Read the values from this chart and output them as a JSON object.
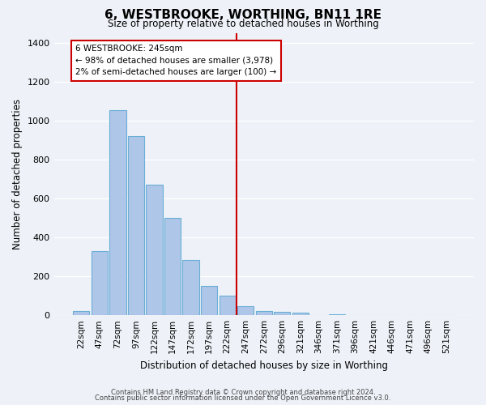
{
  "title": "6, WESTBROOKE, WORTHING, BN11 1RE",
  "subtitle": "Size of property relative to detached houses in Worthing",
  "xlabel": "Distribution of detached houses by size in Worthing",
  "ylabel": "Number of detached properties",
  "bar_labels": [
    "22sqm",
    "47sqm",
    "72sqm",
    "97sqm",
    "122sqm",
    "147sqm",
    "172sqm",
    "197sqm",
    "222sqm",
    "247sqm",
    "272sqm",
    "296sqm",
    "321sqm",
    "346sqm",
    "371sqm",
    "396sqm",
    "421sqm",
    "446sqm",
    "471sqm",
    "496sqm",
    "521sqm"
  ],
  "bar_values": [
    20,
    330,
    1055,
    920,
    670,
    500,
    285,
    150,
    100,
    45,
    22,
    18,
    14,
    0,
    5,
    0,
    0,
    0,
    0,
    0,
    0
  ],
  "bar_color": "#aec6e8",
  "bar_edge_color": "#6aaed6",
  "vline_x": 8.5,
  "vline_color": "#cc0000",
  "ylim": [
    0,
    1450
  ],
  "yticks": [
    0,
    200,
    400,
    600,
    800,
    1000,
    1200,
    1400
  ],
  "annotation_title": "6 WESTBROOKE: 245sqm",
  "annotation_line1": "← 98% of detached houses are smaller (3,978)",
  "annotation_line2": "2% of semi-detached houses are larger (100) →",
  "footer1": "Contains HM Land Registry data © Crown copyright and database right 2024.",
  "footer2": "Contains public sector information licensed under the Open Government Licence v3.0.",
  "background_color": "#eef2f8"
}
